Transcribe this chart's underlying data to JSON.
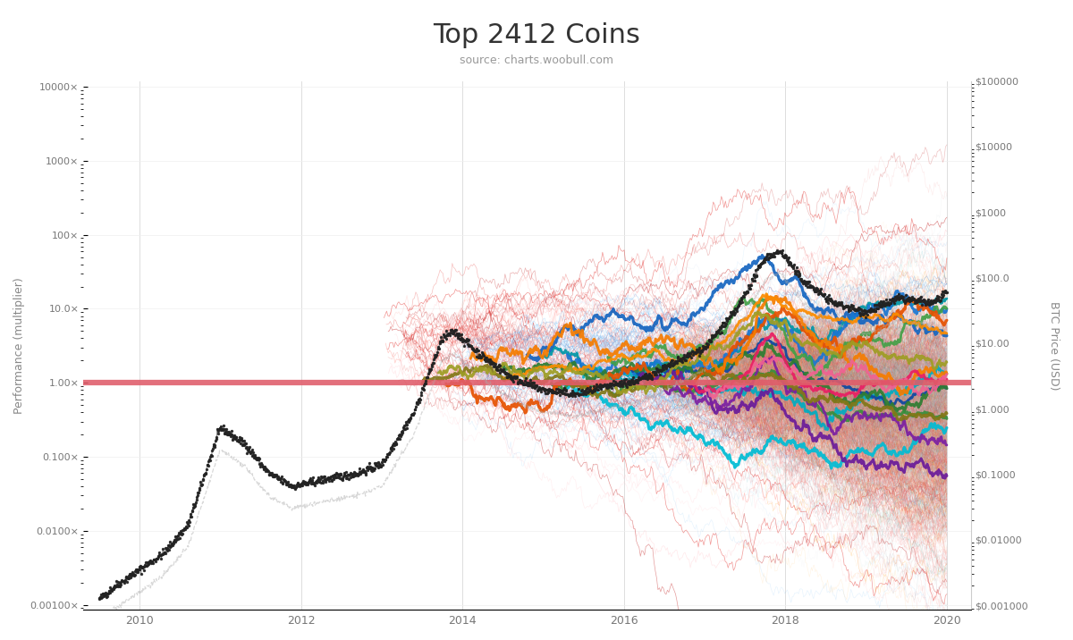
{
  "title": "Top 2412 Coins",
  "subtitle": "source: charts.woobull.com",
  "ylabel_left": "Performance (multiplier)",
  "ylabel_right": "BTC Price (USD)",
  "yticks_left": [
    0.001,
    0.01,
    0.1,
    1.0,
    10.0,
    100.0,
    1000.0,
    10000.0
  ],
  "yticks_left_labels": [
    "0.00100×",
    "0.0100×",
    "0.100×",
    "1.00×",
    "10.0×",
    "100×",
    "1000×",
    "10000×"
  ],
  "yticks_right": [
    0.001,
    0.01,
    0.1,
    1.0,
    10.0,
    100.0,
    1000.0,
    10000.0,
    100000.0
  ],
  "yticks_right_labels": [
    "$0.001000",
    "$0.01000",
    "$0.1000",
    "$1.000",
    "$10.00",
    "$100.0",
    "$1000",
    "$10000",
    "$100000"
  ],
  "xticks": [
    2010,
    2012,
    2014,
    2016,
    2018,
    2020
  ],
  "bg_color": "#ffffff",
  "red_line_y": 1.0,
  "red_line_color": "#e05c6a",
  "btc_line_color": "#222222",
  "seed": 42
}
